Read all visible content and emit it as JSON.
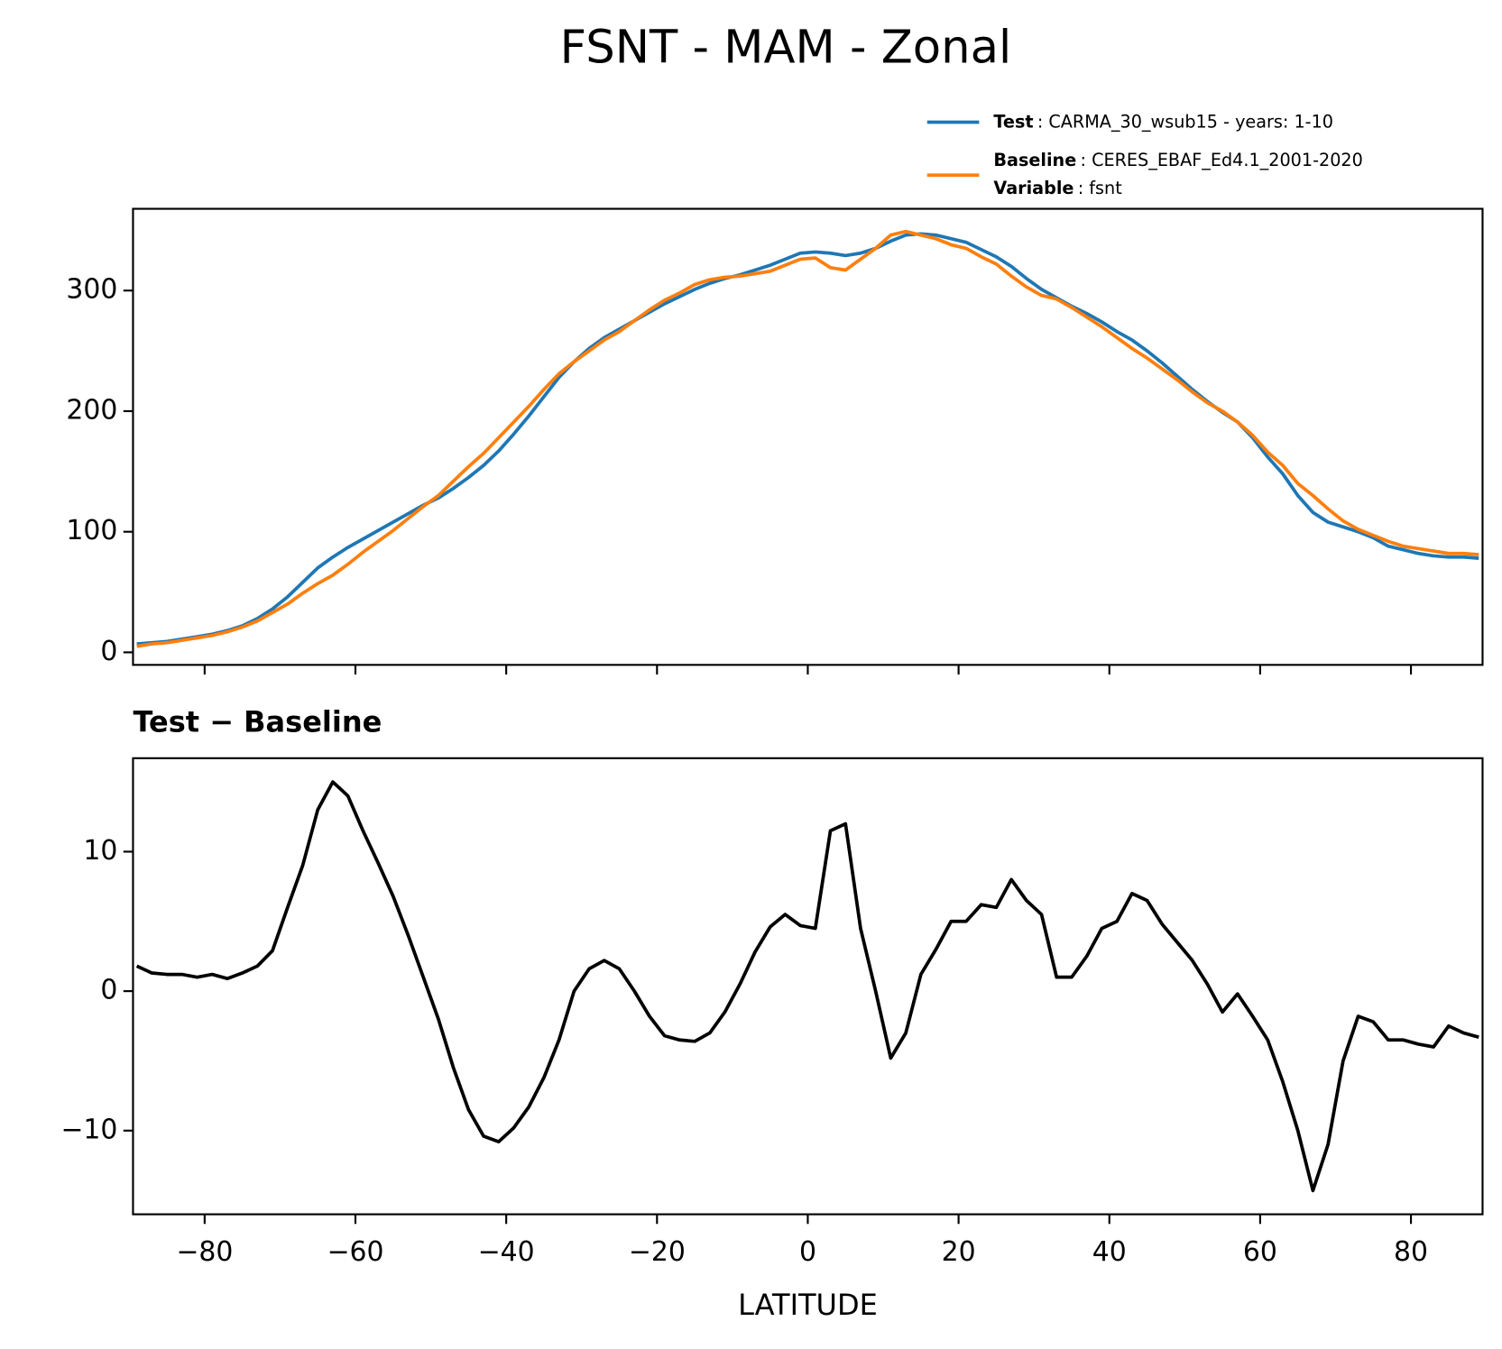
{
  "chart_data": [
    {
      "type": "line",
      "title": "FSNT - MAM - Zonal",
      "x": [
        -89,
        -87,
        -85,
        -83,
        -81,
        -79,
        -77,
        -75,
        -73,
        -71,
        -69,
        -67,
        -65,
        -63,
        -61,
        -59,
        -57,
        -55,
        -53,
        -51,
        -49,
        -47,
        -45,
        -43,
        -41,
        -39,
        -37,
        -35,
        -33,
        -31,
        -29,
        -27,
        -25,
        -23,
        -21,
        -19,
        -17,
        -15,
        -13,
        -11,
        -9,
        -7,
        -5,
        -3,
        -1,
        1,
        3,
        5,
        7,
        9,
        11,
        13,
        15,
        17,
        19,
        21,
        23,
        25,
        27,
        29,
        31,
        33,
        35,
        37,
        39,
        41,
        43,
        45,
        47,
        49,
        51,
        53,
        55,
        57,
        59,
        61,
        63,
        65,
        67,
        69,
        71,
        73,
        75,
        77,
        79,
        81,
        83,
        85,
        87,
        89
      ],
      "series": [
        {
          "name": "Test",
          "label": ": CARMA_30_wsub15 - years: 1-10",
          "color": "#1f77b4",
          "values": [
            7,
            8,
            9,
            11,
            13,
            15,
            18,
            22,
            28,
            36,
            46,
            58,
            70,
            79,
            87,
            94,
            101,
            108,
            115,
            122,
            128,
            136,
            145,
            155,
            167,
            181,
            196,
            212,
            228,
            241,
            252,
            261,
            268,
            275,
            282,
            289,
            295,
            301,
            306,
            310,
            313,
            317,
            321,
            326,
            331,
            332,
            331,
            329,
            331,
            335,
            341,
            346,
            347,
            346,
            343,
            340,
            334,
            328,
            320,
            310,
            301,
            294,
            287,
            281,
            274,
            266,
            259,
            250,
            240,
            229,
            218,
            208,
            199,
            191,
            178,
            162,
            148,
            130,
            116,
            108,
            104,
            100,
            95,
            88,
            85,
            82,
            80,
            79,
            79,
            78
          ]
        },
        {
          "name": "Baseline",
          "label": ": CERES_EBAF_Ed4.1_2001-2020",
          "color": "#ff7f0e",
          "values": [
            5,
            7,
            8,
            10,
            12,
            14,
            17,
            21,
            26,
            33,
            40,
            49,
            57,
            64,
            73,
            83,
            92,
            101,
            111,
            121,
            130,
            142,
            154,
            165,
            178,
            191,
            204,
            218,
            231,
            241,
            250,
            259,
            266,
            275,
            284,
            292,
            298,
            305,
            309,
            311,
            312,
            314,
            316,
            321,
            326,
            327,
            319,
            317,
            326,
            335,
            346,
            349,
            346,
            343,
            338,
            335,
            328,
            322,
            312,
            303,
            296,
            293,
            286,
            278,
            270,
            261,
            252,
            244,
            235,
            226,
            216,
            207,
            200,
            191,
            180,
            166,
            155,
            140,
            130,
            119,
            109,
            102,
            97,
            92,
            88,
            86,
            84,
            82,
            82,
            81
          ]
        }
      ],
      "variable": {
        "name": "Variable",
        "label": ": fsnt"
      },
      "xlim": [
        -89.5,
        89.5
      ],
      "xticks": [
        -80,
        -60,
        -40,
        -20,
        0,
        20,
        40,
        60,
        80
      ],
      "ylim": [
        -10.4,
        367.8
      ],
      "yticks": [
        0,
        100,
        200,
        300
      ]
    },
    {
      "type": "line",
      "title": "Test − Baseline",
      "xlabel": "LATITUDE",
      "x": [
        -89,
        -87,
        -85,
        -83,
        -81,
        -79,
        -77,
        -75,
        -73,
        -71,
        -69,
        -67,
        -65,
        -63,
        -61,
        -59,
        -57,
        -55,
        -53,
        -51,
        -49,
        -47,
        -45,
        -43,
        -41,
        -39,
        -37,
        -35,
        -33,
        -31,
        -29,
        -27,
        -25,
        -23,
        -21,
        -19,
        -17,
        -15,
        -13,
        -11,
        -9,
        -7,
        -5,
        -3,
        -1,
        1,
        3,
        5,
        7,
        9,
        11,
        13,
        15,
        17,
        19,
        21,
        23,
        25,
        27,
        29,
        31,
        33,
        35,
        37,
        39,
        41,
        43,
        45,
        47,
        49,
        51,
        53,
        55,
        57,
        59,
        61,
        63,
        65,
        67,
        69,
        71,
        73,
        75,
        77,
        79,
        81,
        83,
        85,
        87,
        89
      ],
      "series": [
        {
          "color": "#000000",
          "values": [
            1.8,
            1.3,
            1.2,
            1.2,
            1.0,
            1.2,
            0.9,
            1.3,
            1.8,
            2.9,
            6.0,
            9.0,
            13.0,
            15.0,
            14.0,
            11.5,
            9.2,
            6.8,
            4.0,
            1.0,
            -2.0,
            -5.5,
            -8.5,
            -10.4,
            -10.8,
            -9.8,
            -8.3,
            -6.2,
            -3.5,
            0.0,
            1.6,
            2.2,
            1.6,
            0.0,
            -1.8,
            -3.2,
            -3.5,
            -3.6,
            -3.0,
            -1.5,
            0.5,
            2.8,
            4.6,
            5.5,
            4.7,
            4.5,
            11.5,
            12.0,
            4.5,
            0.0,
            -4.8,
            -3.0,
            1.2,
            3.0,
            5.0,
            5.0,
            6.2,
            6.0,
            8.0,
            6.5,
            5.5,
            1.0,
            1.0,
            2.5,
            4.5,
            5.0,
            7.0,
            6.5,
            4.8,
            3.5,
            2.2,
            0.5,
            -1.5,
            -0.2,
            -1.8,
            -3.5,
            -6.5,
            -10.0,
            -14.3,
            -11.0,
            -5.0,
            -1.8,
            -2.2,
            -3.5,
            -3.5,
            -3.8,
            -4.0,
            -2.5,
            -3.0,
            -3.3
          ]
        }
      ],
      "xlim": [
        -89.5,
        89.5
      ],
      "xticks": [
        {
          "value": -80,
          "label": "−80"
        },
        {
          "value": -60,
          "label": "−60"
        },
        {
          "value": -40,
          "label": "−40"
        },
        {
          "value": -20,
          "label": "−20"
        },
        0,
        20,
        40,
        60,
        80
      ],
      "ylim": [
        -16.0,
        16.7
      ],
      "yticks": [
        {
          "value": -10,
          "label": "−10"
        },
        0,
        10
      ]
    }
  ]
}
